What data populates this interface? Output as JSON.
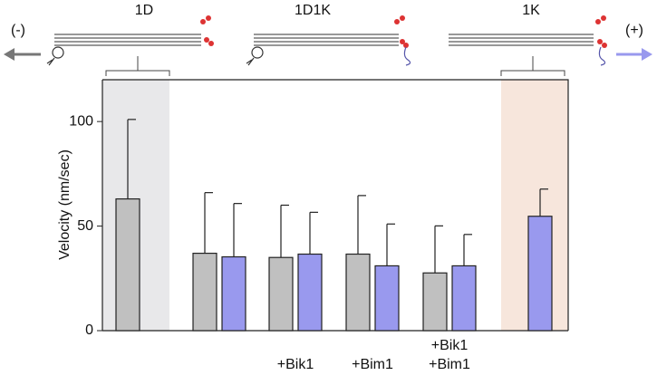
{
  "chart_data": {
    "type": "bar",
    "panel_labels": [
      "1D",
      "1D1K",
      "1K"
    ],
    "minus_end_label": "(-)",
    "plus_end_label": "(+)",
    "y_label": "Velocity (nm/sec)",
    "categories": [
      null,
      null,
      "+Bik1",
      "+Bim1",
      "+Bik1\n+Bim1",
      null
    ],
    "series": [
      {
        "color": "#c0c0c0",
        "values": [
          63,
          37,
          35,
          36.6,
          27.6,
          null
        ],
        "errors": [
          38,
          29,
          25,
          28,
          22.5,
          null
        ]
      },
      {
        "color": "#9999ee",
        "values": [
          null,
          35.3,
          36.6,
          31,
          31,
          54.7
        ],
        "errors": [
          null,
          25.5,
          20,
          20,
          15,
          13
        ]
      }
    ],
    "ylim": [
      0,
      120
    ],
    "yticks": [
      0,
      50,
      100
    ]
  }
}
